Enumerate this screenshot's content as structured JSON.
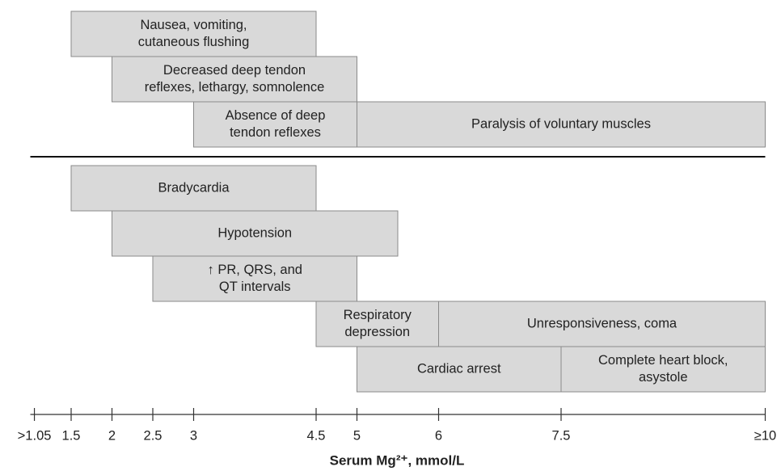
{
  "chart_data": {
    "type": "range",
    "x_label": "Serum Mg²⁺, mmol/L",
    "xlim": [
      1,
      10
    ],
    "xticks": [
      {
        "value": 1.05,
        "label": ">1.05"
      },
      1.5,
      2,
      2.5,
      3,
      4.5,
      5,
      6,
      7.5,
      {
        "value": 10,
        "label": "≥10"
      }
    ],
    "color": "#d9d9d9",
    "panels": [
      {
        "rows": [
          [
            {
              "label": [
                "Nausea, vomiting,",
                "cutaneous flushing"
              ],
              "start": 1.5,
              "end": 4.5
            }
          ],
          [
            {
              "label": [
                "Decreased deep tendon",
                "reflexes, lethargy, somnolence"
              ],
              "start": 2,
              "end": 5
            }
          ],
          [
            {
              "label": [
                "Absence of deep",
                "tendon reflexes"
              ],
              "start": 3,
              "end": 5
            },
            {
              "label": [
                "Paralysis of voluntary muscles"
              ],
              "start": 5,
              "end": 10
            }
          ]
        ]
      },
      {
        "rows": [
          [
            {
              "label": [
                "Bradycardia"
              ],
              "start": 1.5,
              "end": 4.5
            }
          ],
          [
            {
              "label": [
                "Hypotension"
              ],
              "start": 2,
              "end": 5.5
            }
          ],
          [
            {
              "label": [
                "↑ PR, QRS, and",
                "QT intervals"
              ],
              "start": 2.5,
              "end": 5
            }
          ],
          [
            {
              "label": [
                "Respiratory",
                "depression"
              ],
              "start": 4.5,
              "end": 6
            },
            {
              "label": [
                "Unresponsiveness, coma"
              ],
              "start": 6,
              "end": 10
            }
          ],
          [
            {
              "label": [
                "Cardiac arrest"
              ],
              "start": 5,
              "end": 7.5
            },
            {
              "label": [
                "Complete heart block,",
                "asystole"
              ],
              "start": 7.5,
              "end": 10
            }
          ]
        ]
      }
    ]
  }
}
